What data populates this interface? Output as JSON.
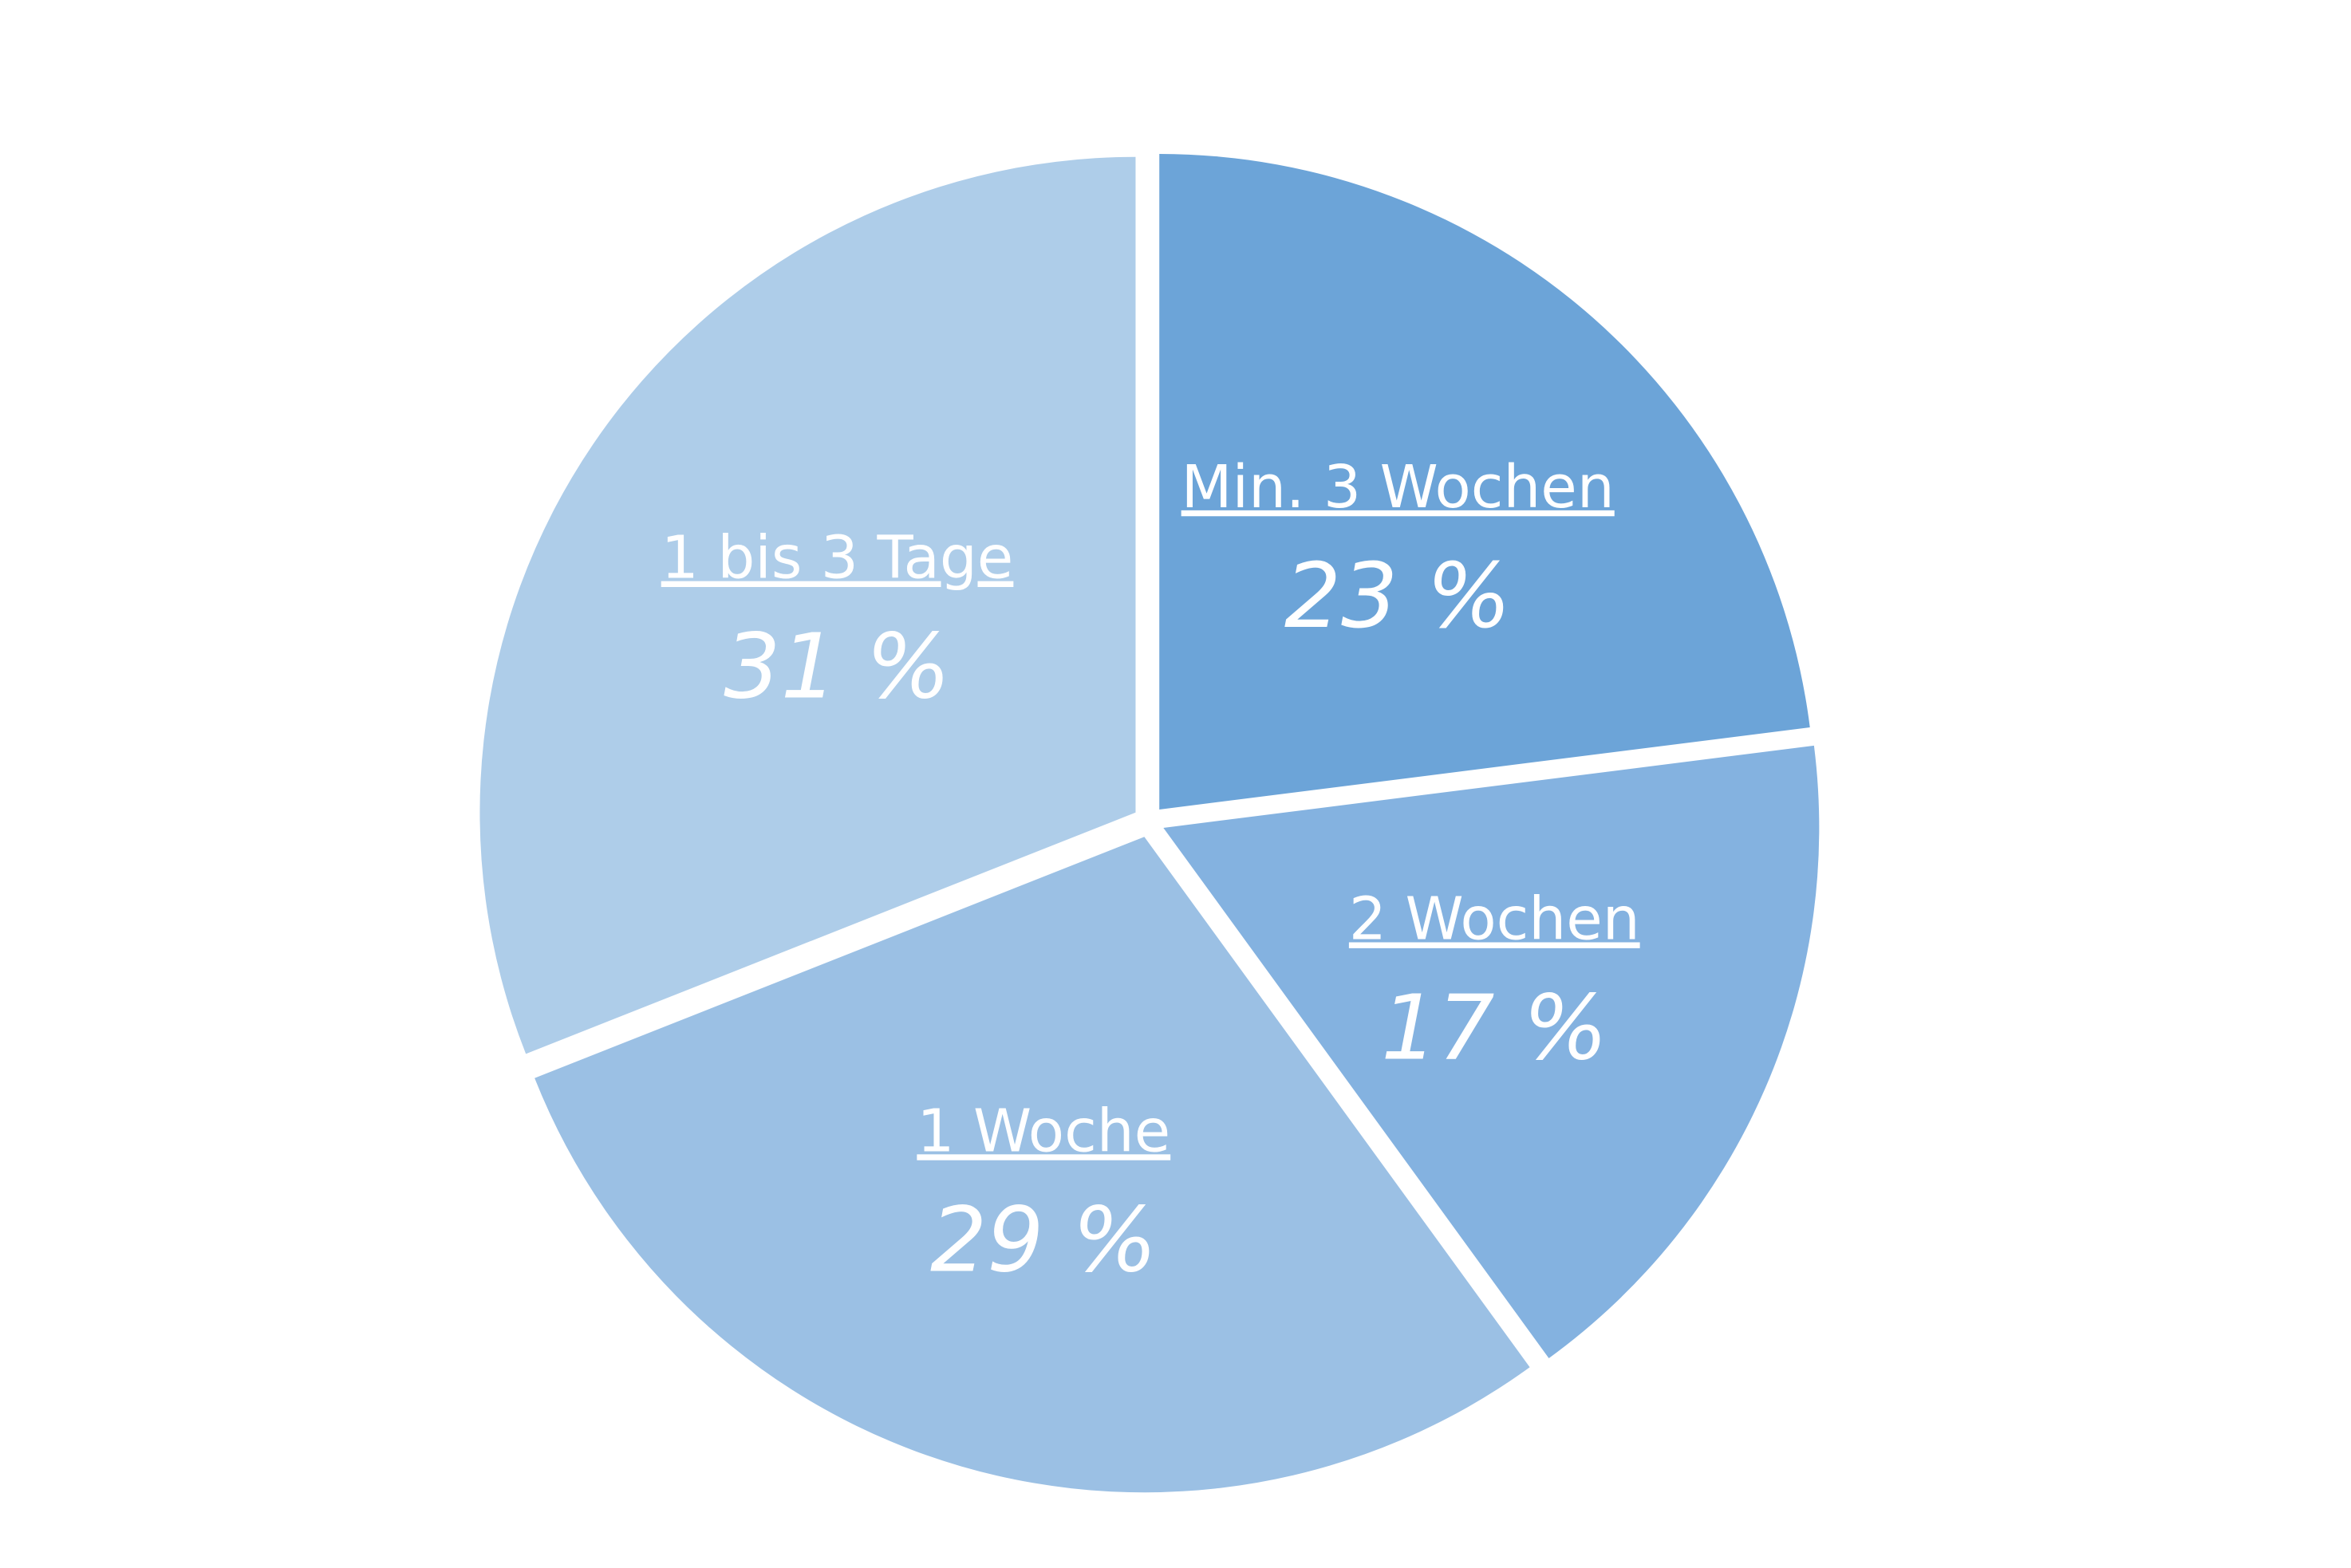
{
  "chart_data": {
    "type": "pie",
    "categories": [
      "Min. 3 Wochen",
      "2 Wochen",
      "1 Woche",
      "1 bis 3 Tage"
    ],
    "values": [
      23,
      17,
      29,
      31
    ],
    "value_labels": [
      "23 %",
      "17 %",
      "29 %",
      "31 %"
    ],
    "colors": [
      "#6ca4d8",
      "#84b2e0",
      "#9bc0e4",
      "#aecde9"
    ]
  }
}
